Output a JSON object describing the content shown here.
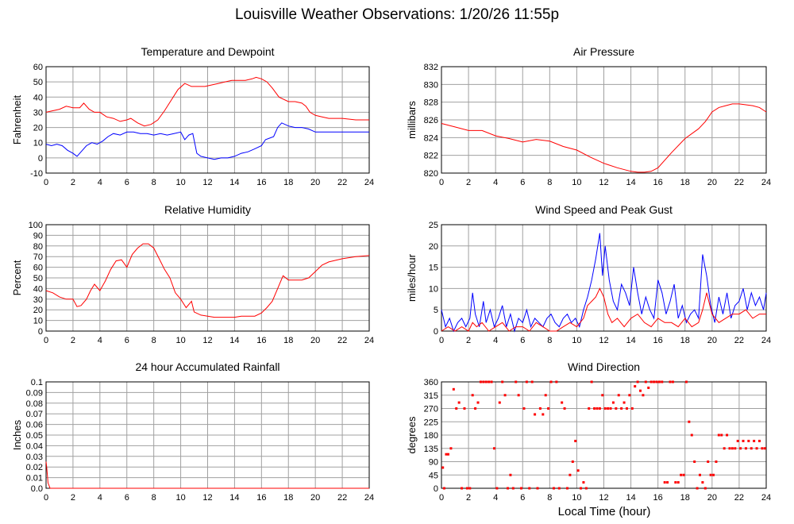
{
  "page": {
    "title": "Louisville Weather Observations: 1/20/26 11:55p",
    "xlabel": "Local Time (hour)"
  },
  "colors": {
    "red": "#ff0000",
    "blue": "#0000ff",
    "grid": "#a0a0a0"
  },
  "chart_data": [
    {
      "type": "line",
      "title": "Temperature and Dewpoint",
      "ylabel": "Fahrenheit",
      "xlim": [
        0,
        24
      ],
      "ylim": [
        -10,
        60
      ],
      "xticks": [
        0,
        2,
        4,
        6,
        8,
        10,
        12,
        14,
        16,
        18,
        20,
        22,
        24
      ],
      "yticks": [
        -10,
        0,
        10,
        20,
        30,
        40,
        50,
        60
      ],
      "grid": true,
      "series": [
        {
          "color": "#ff0000",
          "x": [
            0,
            0.5,
            1,
            1.5,
            2,
            2.5,
            2.8,
            3.2,
            3.6,
            4,
            4.5,
            5,
            5.5,
            6,
            6.3,
            6.8,
            7.3,
            7.8,
            8.3,
            8.8,
            9.3,
            9.8,
            10.3,
            10.8,
            11.3,
            11.8,
            12.3,
            12.8,
            13.3,
            13.8,
            14.3,
            14.8,
            15.3,
            15.6,
            16,
            16.4,
            16.8,
            17.3,
            18,
            18.5,
            19,
            19.3,
            19.6,
            20,
            20.5,
            21,
            22,
            23,
            24
          ],
          "y": [
            30,
            31,
            32,
            34,
            33,
            33,
            36,
            32,
            30,
            30,
            27,
            26,
            24,
            25,
            26,
            23,
            21,
            22,
            25,
            31,
            38,
            45,
            49,
            47,
            47,
            47,
            48,
            49,
            50,
            51,
            51,
            51,
            52,
            53,
            52,
            50,
            46,
            40,
            37,
            37,
            36,
            34,
            30,
            28,
            27,
            26,
            26,
            25,
            25
          ]
        },
        {
          "color": "#0000ff",
          "x": [
            0,
            0.4,
            0.8,
            1.2,
            1.6,
            2,
            2.3,
            2.6,
            3,
            3.4,
            3.8,
            4.2,
            4.6,
            5,
            5.5,
            6,
            6.5,
            7,
            7.5,
            8,
            8.5,
            9,
            9.5,
            10,
            10.3,
            10.6,
            10.9,
            11.2,
            11.5,
            12,
            12.5,
            13,
            13.5,
            14,
            14.5,
            15,
            15.5,
            16,
            16.3,
            16.6,
            16.9,
            17.2,
            17.5,
            18,
            18.5,
            19,
            19.5,
            20,
            21,
            22,
            23,
            24
          ],
          "y": [
            9,
            8,
            9,
            8,
            5,
            3,
            1,
            4,
            8,
            10,
            9,
            11,
            14,
            16,
            15,
            17,
            17,
            16,
            16,
            15,
            16,
            15,
            16,
            17,
            12,
            15,
            16,
            3,
            1,
            0,
            -1,
            0,
            0,
            1,
            3,
            4,
            6,
            8,
            12,
            13,
            14,
            20,
            23,
            21,
            20,
            20,
            19,
            17,
            17,
            17,
            17,
            17
          ]
        }
      ]
    },
    {
      "type": "line",
      "title": "Air Pressure",
      "ylabel": "millibars",
      "xlim": [
        0,
        24
      ],
      "ylim": [
        820,
        832
      ],
      "xticks": [
        0,
        2,
        4,
        6,
        8,
        10,
        12,
        14,
        16,
        18,
        20,
        22,
        24
      ],
      "yticks": [
        820,
        822,
        824,
        826,
        828,
        830,
        832
      ],
      "grid": true,
      "series": [
        {
          "color": "#ff0000",
          "x": [
            0,
            1,
            2,
            3,
            4,
            5,
            6,
            7,
            8,
            9,
            10,
            11,
            12,
            13,
            14,
            14.5,
            15,
            15.5,
            16,
            17,
            18,
            19,
            19.5,
            20,
            20.5,
            21,
            21.5,
            22,
            23,
            23.5,
            24
          ],
          "y": [
            825.6,
            825.2,
            824.8,
            824.8,
            824.2,
            823.9,
            823.5,
            823.8,
            823.6,
            823.0,
            822.6,
            821.8,
            821.1,
            820.6,
            820.2,
            820.1,
            820.1,
            820.2,
            820.6,
            822.3,
            823.9,
            825.0,
            825.8,
            826.9,
            827.4,
            827.6,
            827.8,
            827.8,
            827.6,
            827.4,
            826.9
          ]
        }
      ]
    },
    {
      "type": "line",
      "title": "Relative Humidity",
      "ylabel": "Percent",
      "xlim": [
        0,
        24
      ],
      "ylim": [
        0,
        100
      ],
      "xticks": [
        0,
        2,
        4,
        6,
        8,
        10,
        12,
        14,
        16,
        18,
        20,
        22,
        24
      ],
      "yticks": [
        0,
        10,
        20,
        30,
        40,
        50,
        60,
        70,
        80,
        90,
        100
      ],
      "grid": true,
      "series": [
        {
          "color": "#ff0000",
          "x": [
            0,
            0.5,
            1,
            1.5,
            2,
            2.3,
            2.6,
            3,
            3.3,
            3.6,
            4,
            4.4,
            4.8,
            5.2,
            5.6,
            6,
            6.4,
            6.8,
            7.2,
            7.6,
            8,
            8.4,
            8.8,
            9.2,
            9.6,
            10,
            10.4,
            10.8,
            11,
            11.5,
            12,
            12.5,
            13,
            13.5,
            14,
            14.5,
            15,
            15.5,
            16,
            16.4,
            16.8,
            17.2,
            17.6,
            18,
            18.5,
            19,
            19.5,
            20,
            20.5,
            21,
            22,
            23,
            24
          ],
          "y": [
            38,
            36,
            32,
            30,
            30,
            23,
            24,
            30,
            38,
            44,
            38,
            47,
            58,
            66,
            67,
            60,
            72,
            78,
            82,
            82,
            78,
            68,
            58,
            50,
            36,
            30,
            22,
            28,
            18,
            15,
            14,
            13,
            13,
            13,
            13,
            14,
            14,
            14,
            17,
            22,
            28,
            40,
            52,
            48,
            48,
            48,
            50,
            56,
            62,
            65,
            68,
            70,
            71
          ]
        }
      ]
    },
    {
      "type": "line",
      "title": "Wind Speed and Peak Gust",
      "ylabel": "miles/hour",
      "xlim": [
        0,
        24
      ],
      "ylim": [
        0,
        25
      ],
      "xticks": [
        0,
        2,
        4,
        6,
        8,
        10,
        12,
        14,
        16,
        18,
        20,
        22,
        24
      ],
      "yticks": [
        0,
        5,
        10,
        15,
        20,
        25
      ],
      "grid": true,
      "series": [
        {
          "color": "#0000ff",
          "x": [
            0,
            0.3,
            0.6,
            0.9,
            1.2,
            1.5,
            1.8,
            2.1,
            2.3,
            2.5,
            2.8,
            3.1,
            3.3,
            3.6,
            3.9,
            4.2,
            4.5,
            4.8,
            5.1,
            5.4,
            5.7,
            6,
            6.3,
            6.6,
            6.9,
            7.2,
            7.5,
            7.8,
            8.1,
            8.4,
            8.7,
            9,
            9.3,
            9.6,
            9.9,
            10.2,
            10.5,
            10.8,
            11.1,
            11.4,
            11.7,
            11.9,
            12.1,
            12.4,
            12.7,
            13,
            13.3,
            13.6,
            13.9,
            14.2,
            14.5,
            14.8,
            15.1,
            15.4,
            15.7,
            16,
            16.3,
            16.6,
            16.9,
            17.2,
            17.5,
            17.8,
            18.1,
            18.4,
            18.7,
            19,
            19.3,
            19.6,
            19.9,
            20.2,
            20.5,
            20.8,
            21.1,
            21.4,
            21.7,
            22,
            22.3,
            22.6,
            22.9,
            23.2,
            23.5,
            23.8,
            24
          ],
          "y": [
            5,
            1,
            3,
            0,
            2,
            3,
            1,
            3,
            9,
            4,
            1,
            7,
            2,
            5,
            1,
            3,
            6,
            1,
            4,
            0,
            3,
            2,
            5,
            1,
            3,
            2,
            1,
            3,
            4,
            2,
            1,
            3,
            4,
            2,
            3,
            1,
            5,
            8,
            12,
            17,
            23,
            13,
            20,
            12,
            7,
            5,
            11,
            9,
            6,
            15,
            9,
            4,
            8,
            5,
            3,
            12,
            9,
            4,
            7,
            11,
            3,
            6,
            2,
            4,
            5,
            3,
            18,
            13,
            6,
            2,
            8,
            4,
            9,
            3,
            6,
            7,
            10,
            5,
            9,
            6,
            8,
            5,
            9
          ]
        },
        {
          "color": "#ff0000",
          "x": [
            0,
            0.5,
            1,
            1.5,
            2,
            2.3,
            2.6,
            3,
            3.5,
            4,
            4.5,
            5,
            5.5,
            6,
            6.5,
            7,
            7.5,
            8,
            8.5,
            9,
            9.5,
            10,
            10.5,
            10.8,
            11.1,
            11.4,
            11.7,
            12,
            12.3,
            12.6,
            13,
            13.5,
            14,
            14.5,
            15,
            15.5,
            16,
            16.5,
            17,
            17.5,
            18,
            18.5,
            19,
            19.3,
            19.6,
            20,
            20.5,
            21,
            21.5,
            22,
            22.5,
            23,
            23.5,
            24
          ],
          "y": [
            0,
            1,
            0,
            1,
            0,
            2,
            1,
            2,
            0,
            1,
            2,
            0,
            1,
            1,
            0,
            2,
            1,
            0,
            0,
            1,
            2,
            1,
            3,
            6,
            7,
            8,
            10,
            8,
            4,
            2,
            3,
            1,
            3,
            4,
            2,
            1,
            3,
            2,
            2,
            1,
            3,
            1,
            2,
            5,
            9,
            4,
            2,
            3,
            4,
            4,
            5,
            3,
            4,
            4
          ]
        }
      ]
    },
    {
      "type": "line",
      "title": "24 hour Accumulated Rainfall",
      "ylabel": "Inches",
      "xlim": [
        0,
        24
      ],
      "ylim": [
        0,
        0.1
      ],
      "xticks": [
        0,
        2,
        4,
        6,
        8,
        10,
        12,
        14,
        16,
        18,
        20,
        22,
        24
      ],
      "yticks": [
        0.0,
        0.01,
        0.02,
        0.03,
        0.04,
        0.05,
        0.06,
        0.07,
        0.08,
        0.09,
        0.1
      ],
      "yticklabels": [
        "0.0",
        "0.01",
        "0.02",
        "0.03",
        "0.04",
        "0.05",
        "0.06",
        "0.07",
        "0.08",
        "0.09",
        "0.1"
      ],
      "grid": true,
      "series": [
        {
          "color": "#ff0000",
          "x": [
            0,
            0.05,
            0.15,
            0.3,
            1,
            24
          ],
          "y": [
            0.025,
            0.02,
            0.005,
            0,
            0,
            0
          ]
        }
      ]
    },
    {
      "type": "scatter",
      "title": "Wind Direction",
      "ylabel": "degrees",
      "xlabel": "Local Time (hour)",
      "xlim": [
        0,
        24
      ],
      "ylim": [
        0,
        360
      ],
      "xticks": [
        0,
        2,
        4,
        6,
        8,
        10,
        12,
        14,
        16,
        18,
        20,
        22,
        24
      ],
      "yticks": [
        0,
        45,
        90,
        135,
        180,
        225,
        270,
        315,
        360
      ],
      "grid": true,
      "series": [
        {
          "color": "#ff0000",
          "x": [
            0.1,
            0.2,
            0.35,
            0.5,
            0.7,
            0.9,
            1.1,
            1.3,
            1.5,
            1.7,
            1.9,
            2.1,
            2.3,
            2.5,
            2.7,
            2.9,
            3.1,
            3.3,
            3.5,
            3.7,
            3.9,
            4.1,
            4.3,
            4.5,
            4.7,
            4.9,
            5.1,
            5.3,
            5.5,
            5.7,
            5.9,
            6.1,
            6.3,
            6.5,
            6.7,
            6.9,
            7.1,
            7.3,
            7.5,
            7.7,
            7.9,
            8.1,
            8.3,
            8.5,
            8.7,
            8.9,
            9.1,
            9.3,
            9.5,
            9.7,
            9.9,
            10.1,
            10.3,
            10.5,
            10.7,
            10.9,
            11.1,
            11.3,
            11.5,
            11.7,
            11.9,
            12.1,
            12.3,
            12.5,
            12.7,
            12.9,
            13.1,
            13.3,
            13.5,
            13.7,
            13.9,
            14.1,
            14.3,
            14.5,
            14.7,
            14.9,
            15.1,
            15.3,
            15.5,
            15.7,
            15.9,
            16.1,
            16.3,
            16.5,
            16.7,
            16.9,
            17.1,
            17.3,
            17.5,
            17.7,
            17.9,
            18.1,
            18.3,
            18.5,
            18.7,
            18.9,
            19.1,
            19.3,
            19.5,
            19.7,
            19.9,
            20.1,
            20.3,
            20.5,
            20.7,
            20.9,
            21.1,
            21.3,
            21.5,
            21.7,
            21.9,
            22.1,
            22.3,
            22.5,
            22.7,
            22.9,
            23.1,
            23.3,
            23.5,
            23.7,
            23.9
          ],
          "y": [
            70,
            0,
            115,
            115,
            135,
            335,
            270,
            290,
            0,
            270,
            0,
            0,
            315,
            270,
            290,
            360,
            360,
            360,
            360,
            360,
            135,
            0,
            290,
            360,
            315,
            0,
            45,
            0,
            360,
            315,
            0,
            270,
            360,
            0,
            360,
            250,
            0,
            270,
            250,
            315,
            270,
            360,
            0,
            360,
            0,
            290,
            270,
            0,
            45,
            90,
            160,
            60,
            0,
            20,
            0,
            270,
            360,
            270,
            270,
            270,
            315,
            270,
            270,
            270,
            290,
            270,
            315,
            270,
            290,
            270,
            315,
            270,
            345,
            360,
            330,
            315,
            360,
            340,
            360,
            360,
            360,
            360,
            360,
            20,
            20,
            360,
            360,
            20,
            20,
            45,
            45,
            360,
            225,
            180,
            90,
            0,
            45,
            20,
            0,
            90,
            45,
            45,
            90,
            180,
            180,
            135,
            180,
            135,
            135,
            135,
            160,
            135,
            160,
            135,
            160,
            135,
            160,
            135,
            160,
            135,
            135
          ]
        }
      ]
    }
  ]
}
